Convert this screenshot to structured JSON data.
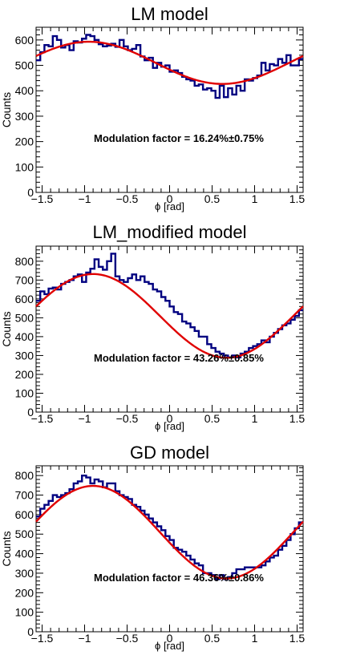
{
  "chart_data": [
    {
      "type": "line",
      "title": "LM model",
      "xlabel": "ϕ [rad]",
      "ylabel": "Counts",
      "xlim": [
        -1.5708,
        1.5708
      ],
      "ylim": [
        0,
        650
      ],
      "xticks": [
        -1.5,
        -1,
        -0.5,
        0,
        0.5,
        1,
        1.5
      ],
      "xtick_labels": [
        "−1.5",
        "−1",
        "−0.5",
        "0",
        "0.5",
        "1",
        "1.5"
      ],
      "yticks": [
        0,
        100,
        200,
        300,
        400,
        500,
        600
      ],
      "ytick_labels": [
        "0",
        "100",
        "200",
        "300",
        "400",
        "500",
        "600"
      ],
      "annotation": "Modulation factor = 16.24%±0.75%",
      "series": [
        {
          "kind": "histogram",
          "color": "#000080",
          "values": [
            520,
            552,
            580,
            575,
            615,
            600,
            570,
            580,
            560,
            595,
            590,
            605,
            620,
            615,
            600,
            583,
            575,
            578,
            585,
            573,
            600,
            575,
            560,
            565,
            580,
            535,
            520,
            530,
            490,
            510,
            495,
            500,
            475,
            480,
            470,
            455,
            445,
            440,
            420,
            425,
            405,
            410,
            400,
            372,
            420,
            375,
            410,
            385,
            420,
            400,
            445,
            440,
            450,
            460,
            510,
            480,
            505,
            500,
            525,
            510,
            540,
            500,
            500,
            525
          ]
        },
        {
          "kind": "fit",
          "color": "#e00000",
          "mean": 510,
          "amplitude": 83,
          "phase_center": -0.95
        }
      ]
    },
    {
      "type": "line",
      "title": "LM_modified model",
      "xlabel": "ϕ [rad]",
      "ylabel": "Counts",
      "xlim": [
        -1.5708,
        1.5708
      ],
      "ylim": [
        0,
        880
      ],
      "xticks": [
        -1.5,
        -1,
        -0.5,
        0,
        0.5,
        1,
        1.5
      ],
      "xtick_labels": [
        "−1.5",
        "−1",
        "−0.5",
        "0",
        "0.5",
        "1",
        "1.5"
      ],
      "yticks": [
        0,
        100,
        200,
        300,
        400,
        500,
        600,
        700,
        800
      ],
      "ytick_labels": [
        "0",
        "100",
        "200",
        "300",
        "400",
        "500",
        "600",
        "700",
        "800"
      ],
      "annotation": "Modulation factor = 43.26%±0.85%",
      "series": [
        {
          "kind": "histogram",
          "color": "#000080",
          "values": [
            590,
            640,
            625,
            655,
            660,
            650,
            680,
            690,
            700,
            720,
            730,
            690,
            740,
            760,
            810,
            770,
            755,
            800,
            840,
            720,
            700,
            690,
            710,
            730,
            700,
            720,
            690,
            680,
            650,
            640,
            610,
            590,
            560,
            530,
            520,
            480,
            470,
            450,
            430,
            400,
            400,
            360,
            340,
            320,
            310,
            300,
            290,
            300,
            290,
            310,
            320,
            340,
            350,
            360,
            380,
            370,
            400,
            420,
            440,
            460,
            470,
            490,
            510,
            540
          ]
        },
        {
          "kind": "fit",
          "color": "#e00000",
          "mean": 510,
          "amplitude": 222,
          "phase_center": -0.9
        }
      ]
    },
    {
      "type": "line",
      "title": "GD model",
      "xlabel": "ϕ [rad]",
      "ylabel": "Counts",
      "xlim": [
        -1.5708,
        1.5708
      ],
      "ylim": [
        0,
        850
      ],
      "xticks": [
        -1.5,
        -1,
        -0.5,
        0,
        0.5,
        1,
        1.5
      ],
      "xtick_labels": [
        "−1.5",
        "−1",
        "−0.5",
        "0",
        "0.5",
        "1",
        "1.5"
      ],
      "yticks": [
        0,
        100,
        200,
        300,
        400,
        500,
        600,
        700,
        800
      ],
      "ytick_labels": [
        "0",
        "100",
        "200",
        "300",
        "400",
        "500",
        "600",
        "700",
        "800"
      ],
      "annotation": "Modulation factor = 46.36%±0.86%",
      "series": [
        {
          "kind": "histogram",
          "color": "#000080",
          "values": [
            590,
            630,
            650,
            670,
            700,
            690,
            700,
            710,
            730,
            760,
            770,
            800,
            790,
            760,
            780,
            770,
            740,
            760,
            760,
            720,
            700,
            690,
            680,
            650,
            640,
            620,
            600,
            580,
            560,
            540,
            520,
            490,
            470,
            430,
            420,
            410,
            390,
            370,
            350,
            340,
            300,
            300,
            290,
            270,
            290,
            270,
            280,
            300,
            320,
            320,
            330,
            330,
            330,
            330,
            340,
            360,
            380,
            390,
            420,
            440,
            470,
            500,
            530,
            560
          ]
        },
        {
          "kind": "fit",
          "color": "#e00000",
          "mean": 510,
          "amplitude": 237,
          "phase_center": -0.9
        }
      ]
    }
  ]
}
